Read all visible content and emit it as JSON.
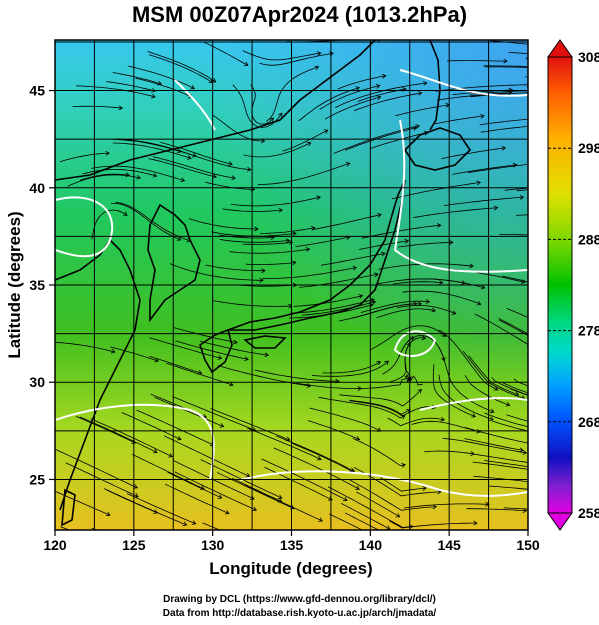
{
  "title": "MSM 00Z07Apr2024 (1013.2hPa)",
  "map": {
    "xlabel": "Longitude (degrees)",
    "ylabel": "Latitude  (degrees)",
    "lon_range": [
      120,
      150
    ],
    "lat_range": [
      22.4,
      47.6
    ],
    "lon_ticks": [
      "120",
      "125",
      "130",
      "135",
      "140",
      "145",
      "150"
    ],
    "lat_ticks": [
      "25",
      "30",
      "35",
      "40",
      "45"
    ],
    "grid": true,
    "field": "temperature with streamlines"
  },
  "colorbar": {
    "ticks": [
      "308",
      "298",
      "288",
      "278",
      "268",
      "258"
    ],
    "min": 258,
    "max": 308,
    "colors": [
      "#e000e0",
      "#8020d0",
      "#1010c0",
      "#0050ff",
      "#00a0ff",
      "#00d8d0",
      "#00d880",
      "#00c000",
      "#80d800",
      "#e0e000",
      "#ffb000",
      "#ff6000",
      "#e01010"
    ]
  },
  "footer": {
    "line1": "Drawing by DCL (https://www.gfd-dennou.org/library/dcl/)",
    "line2": "Data from http://database.rish.kyoto-u.ac.jp/arch/jmadata/"
  }
}
